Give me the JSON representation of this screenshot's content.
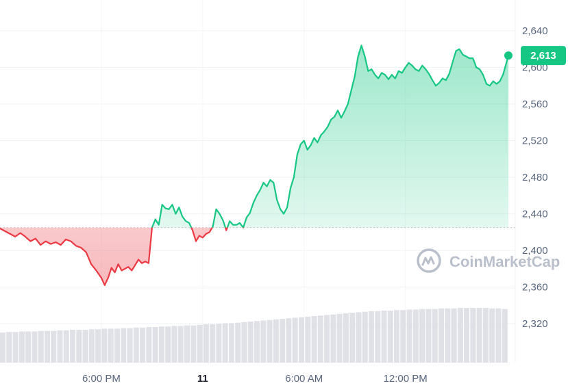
{
  "chart_data": {
    "type": "line",
    "title": "",
    "xlabel": "",
    "ylabel": "",
    "baseline": 2425,
    "ylim": [
      2290,
      2655
    ],
    "y_ticks": [
      "2,320",
      "2,360",
      "2,400",
      "2,440",
      "2,480",
      "2,520",
      "2,560",
      "2,600",
      "2,640"
    ],
    "y_tick_values": [
      2320,
      2360,
      2400,
      2440,
      2480,
      2520,
      2560,
      2600,
      2640
    ],
    "x_ticks": [
      {
        "label": "6:00 PM",
        "t": 18,
        "bold": false
      },
      {
        "label": "11",
        "t": 24,
        "bold": true
      },
      {
        "label": "6:00 AM",
        "t": 30,
        "bold": false
      },
      {
        "label": "12:00 PM",
        "t": 36,
        "bold": false
      }
    ],
    "xlim": [
      12.0,
      42.1
    ],
    "current_price_label": "2,613",
    "current_price": 2613,
    "colors": {
      "up": "#16c784",
      "down": "#ea3943",
      "grid": "#eff2f5",
      "baseline": "#c8ccd3",
      "volume": "#dfe1e7",
      "watermark": "#b9c0cc"
    },
    "watermark_text": "CoinMarketCap",
    "series": [
      {
        "points": [
          [
            12.0,
            2424
          ],
          [
            12.3,
            2421
          ],
          [
            12.6,
            2418
          ],
          [
            12.9,
            2415
          ],
          [
            13.2,
            2419
          ],
          [
            13.5,
            2415
          ],
          [
            13.8,
            2410
          ],
          [
            14.1,
            2413
          ],
          [
            14.4,
            2406
          ],
          [
            14.7,
            2410
          ],
          [
            15.0,
            2407
          ],
          [
            15.3,
            2409
          ],
          [
            15.6,
            2406
          ],
          [
            15.9,
            2412
          ],
          [
            16.2,
            2410
          ],
          [
            16.5,
            2405
          ],
          [
            16.8,
            2403
          ],
          [
            17.1,
            2398
          ],
          [
            17.4,
            2385
          ],
          [
            17.7,
            2378
          ],
          [
            18.0,
            2370
          ],
          [
            18.2,
            2362
          ],
          [
            18.4,
            2370
          ],
          [
            18.6,
            2381
          ],
          [
            18.8,
            2376
          ],
          [
            19.0,
            2385
          ],
          [
            19.2,
            2378
          ],
          [
            19.4,
            2380
          ],
          [
            19.6,
            2382
          ],
          [
            19.8,
            2378
          ],
          [
            20.0,
            2384
          ],
          [
            20.2,
            2390
          ],
          [
            20.4,
            2386
          ],
          [
            20.6,
            2388
          ],
          [
            20.8,
            2386
          ],
          [
            21.0,
            2425
          ],
          [
            21.2,
            2434
          ],
          [
            21.4,
            2428
          ],
          [
            21.6,
            2450
          ],
          [
            21.8,
            2446
          ],
          [
            22.0,
            2445
          ],
          [
            22.2,
            2450
          ],
          [
            22.4,
            2440
          ],
          [
            22.6,
            2447
          ],
          [
            22.8,
            2437
          ],
          [
            23.0,
            2432
          ],
          [
            23.2,
            2430
          ],
          [
            23.4,
            2422
          ],
          [
            23.6,
            2410
          ],
          [
            23.8,
            2416
          ],
          [
            24.0,
            2414
          ],
          [
            24.2,
            2418
          ],
          [
            24.4,
            2420
          ],
          [
            24.6,
            2426
          ],
          [
            24.8,
            2445
          ],
          [
            25.0,
            2440
          ],
          [
            25.2,
            2433
          ],
          [
            25.4,
            2422
          ],
          [
            25.6,
            2432
          ],
          [
            25.8,
            2428
          ],
          [
            26.0,
            2428
          ],
          [
            26.2,
            2430
          ],
          [
            26.4,
            2425
          ],
          [
            26.6,
            2436
          ],
          [
            26.8,
            2441
          ],
          [
            27.0,
            2452
          ],
          [
            27.2,
            2460
          ],
          [
            27.4,
            2466
          ],
          [
            27.6,
            2474
          ],
          [
            27.8,
            2470
          ],
          [
            28.0,
            2477
          ],
          [
            28.2,
            2474
          ],
          [
            28.4,
            2455
          ],
          [
            28.6,
            2445
          ],
          [
            28.8,
            2440
          ],
          [
            29.0,
            2447
          ],
          [
            29.2,
            2468
          ],
          [
            29.4,
            2480
          ],
          [
            29.6,
            2505
          ],
          [
            29.8,
            2516
          ],
          [
            30.0,
            2520
          ],
          [
            30.2,
            2510
          ],
          [
            30.4,
            2515
          ],
          [
            30.6,
            2523
          ],
          [
            30.8,
            2518
          ],
          [
            31.0,
            2526
          ],
          [
            31.2,
            2530
          ],
          [
            31.4,
            2535
          ],
          [
            31.6,
            2543
          ],
          [
            31.8,
            2546
          ],
          [
            32.0,
            2553
          ],
          [
            32.2,
            2545
          ],
          [
            32.4,
            2552
          ],
          [
            32.6,
            2560
          ],
          [
            32.8,
            2575
          ],
          [
            33.0,
            2590
          ],
          [
            33.2,
            2612
          ],
          [
            33.4,
            2624
          ],
          [
            33.6,
            2612
          ],
          [
            33.8,
            2596
          ],
          [
            34.0,
            2598
          ],
          [
            34.2,
            2592
          ],
          [
            34.4,
            2588
          ],
          [
            34.6,
            2594
          ],
          [
            34.8,
            2592
          ],
          [
            35.0,
            2587
          ],
          [
            35.2,
            2592
          ],
          [
            35.4,
            2588
          ],
          [
            35.6,
            2596
          ],
          [
            35.8,
            2594
          ],
          [
            36.0,
            2600
          ],
          [
            36.2,
            2605
          ],
          [
            36.4,
            2602
          ],
          [
            36.6,
            2598
          ],
          [
            36.8,
            2596
          ],
          [
            37.0,
            2602
          ],
          [
            37.2,
            2598
          ],
          [
            37.4,
            2593
          ],
          [
            37.6,
            2586
          ],
          [
            37.8,
            2580
          ],
          [
            38.0,
            2583
          ],
          [
            38.2,
            2588
          ],
          [
            38.4,
            2586
          ],
          [
            38.6,
            2593
          ],
          [
            38.8,
            2606
          ],
          [
            39.0,
            2618
          ],
          [
            39.2,
            2620
          ],
          [
            39.4,
            2614
          ],
          [
            39.6,
            2612
          ],
          [
            39.8,
            2610
          ],
          [
            40.0,
            2610
          ],
          [
            40.2,
            2600
          ],
          [
            40.4,
            2598
          ],
          [
            40.6,
            2592
          ],
          [
            40.8,
            2582
          ],
          [
            41.0,
            2580
          ],
          [
            41.2,
            2585
          ],
          [
            41.4,
            2582
          ],
          [
            41.6,
            2585
          ],
          [
            41.8,
            2593
          ],
          [
            42.1,
            2613
          ]
        ]
      }
    ],
    "volume": [
      0.55,
      0.56,
      0.56,
      0.57,
      0.57,
      0.57,
      0.58,
      0.58,
      0.58,
      0.59,
      0.59,
      0.6,
      0.6,
      0.6,
      0.61,
      0.61,
      0.62,
      0.62,
      0.62,
      0.63,
      0.63,
      0.64,
      0.64,
      0.65,
      0.65,
      0.66,
      0.66,
      0.67,
      0.67,
      0.68,
      0.68,
      0.69,
      0.7,
      0.7,
      0.71,
      0.72,
      0.72,
      0.73,
      0.74,
      0.75,
      0.76,
      0.77,
      0.78,
      0.79,
      0.8,
      0.81,
      0.82,
      0.83,
      0.84,
      0.85,
      0.86,
      0.87,
      0.88,
      0.89,
      0.9,
      0.91,
      0.92,
      0.93,
      0.94,
      0.94,
      0.95,
      0.95,
      0.96,
      0.96,
      0.97,
      0.97,
      0.98,
      0.98,
      0.98,
      0.99,
      0.99,
      0.99,
      1.0,
      1.0,
      1.0,
      1.0,
      1.0,
      0.99,
      0.99,
      0.98
    ]
  }
}
